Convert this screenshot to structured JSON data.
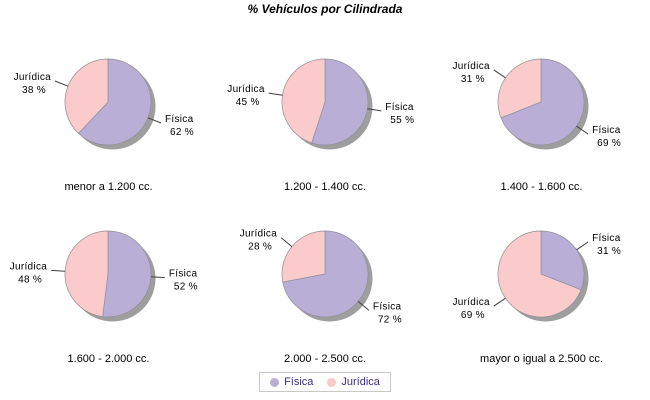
{
  "title": "% Vehículos por Cilindrada",
  "colors": {
    "fisica": "#B8AED6",
    "juridica": "#FBCACB",
    "shadow": "#9E9E9E",
    "slice_outline": "#8f8f98",
    "callout_line": "#404040",
    "label_text": "#000000",
    "legend_text": "#3D2B8C",
    "legend_border": "#c8c8c8",
    "background": "#ffffff"
  },
  "series_colors": {
    "Física": "#B8AED6",
    "Jurídica": "#FBCACB"
  },
  "legend": {
    "items": [
      {
        "label": "Física"
      },
      {
        "label": "Jurídica"
      }
    ]
  },
  "chart_data": [
    {
      "type": "pie",
      "title": "menor a 1.200 cc.",
      "labels": [
        "Física",
        "Jurídica"
      ],
      "values": [
        62,
        38
      ],
      "unit": "%",
      "start_angle": "top",
      "direction": "clockwise"
    },
    {
      "type": "pie",
      "title": "1.200 - 1.400 cc.",
      "labels": [
        "Física",
        "Jurídica"
      ],
      "values": [
        55,
        45
      ],
      "unit": "%",
      "start_angle": "top",
      "direction": "clockwise"
    },
    {
      "type": "pie",
      "title": "1.400 - 1.600 cc.",
      "labels": [
        "Física",
        "Jurídica"
      ],
      "values": [
        69,
        31
      ],
      "unit": "%",
      "start_angle": "top",
      "direction": "clockwise"
    },
    {
      "type": "pie",
      "title": "1.600 - 2.000 cc.",
      "labels": [
        "Física",
        "Jurídica"
      ],
      "values": [
        52,
        48
      ],
      "unit": "%",
      "start_angle": "top",
      "direction": "clockwise"
    },
    {
      "type": "pie",
      "title": "2.000 - 2.500 cc.",
      "labels": [
        "Física",
        "Jurídica"
      ],
      "values": [
        72,
        28
      ],
      "unit": "%",
      "start_angle": "top",
      "direction": "clockwise"
    },
    {
      "type": "pie",
      "title": "mayor o igual a 2.500 cc.",
      "labels": [
        "Física",
        "Jurídica"
      ],
      "values": [
        31,
        69
      ],
      "unit": "%",
      "start_angle": "top",
      "direction": "clockwise"
    }
  ]
}
